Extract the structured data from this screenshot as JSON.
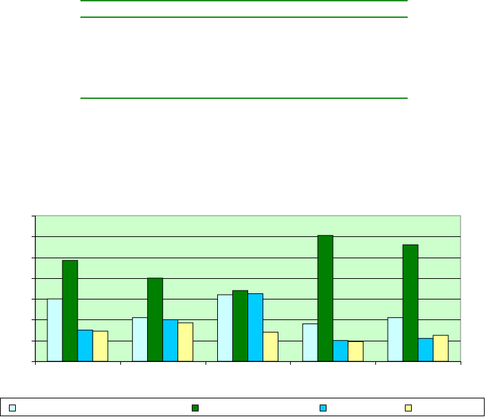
{
  "colors": {
    "rule": "#1f8c1f",
    "plot_background": "#ccffcc",
    "gridline": "#000000",
    "series": [
      "#ccffff",
      "#008000",
      "#00ccff",
      "#ffff99"
    ]
  },
  "chart_data": {
    "type": "bar",
    "title": "",
    "xlabel": "",
    "ylabel": "",
    "categories": [
      "",
      "",
      "",
      "",
      ""
    ],
    "ylim": [
      0,
      7
    ],
    "grid": true,
    "legend": "bottom",
    "series": [
      {
        "name": "",
        "color": "#ccffff",
        "values": [
          3.0,
          2.1,
          3.2,
          1.8,
          2.1
        ]
      },
      {
        "name": "",
        "color": "#008000",
        "values": [
          4.85,
          4.0,
          3.4,
          6.05,
          5.6
        ]
      },
      {
        "name": "",
        "color": "#00ccff",
        "values": [
          1.5,
          2.0,
          3.25,
          1.0,
          1.1
        ]
      },
      {
        "name": "",
        "color": "#ffff99",
        "values": [
          1.45,
          1.85,
          1.4,
          0.95,
          1.25
        ]
      }
    ]
  }
}
